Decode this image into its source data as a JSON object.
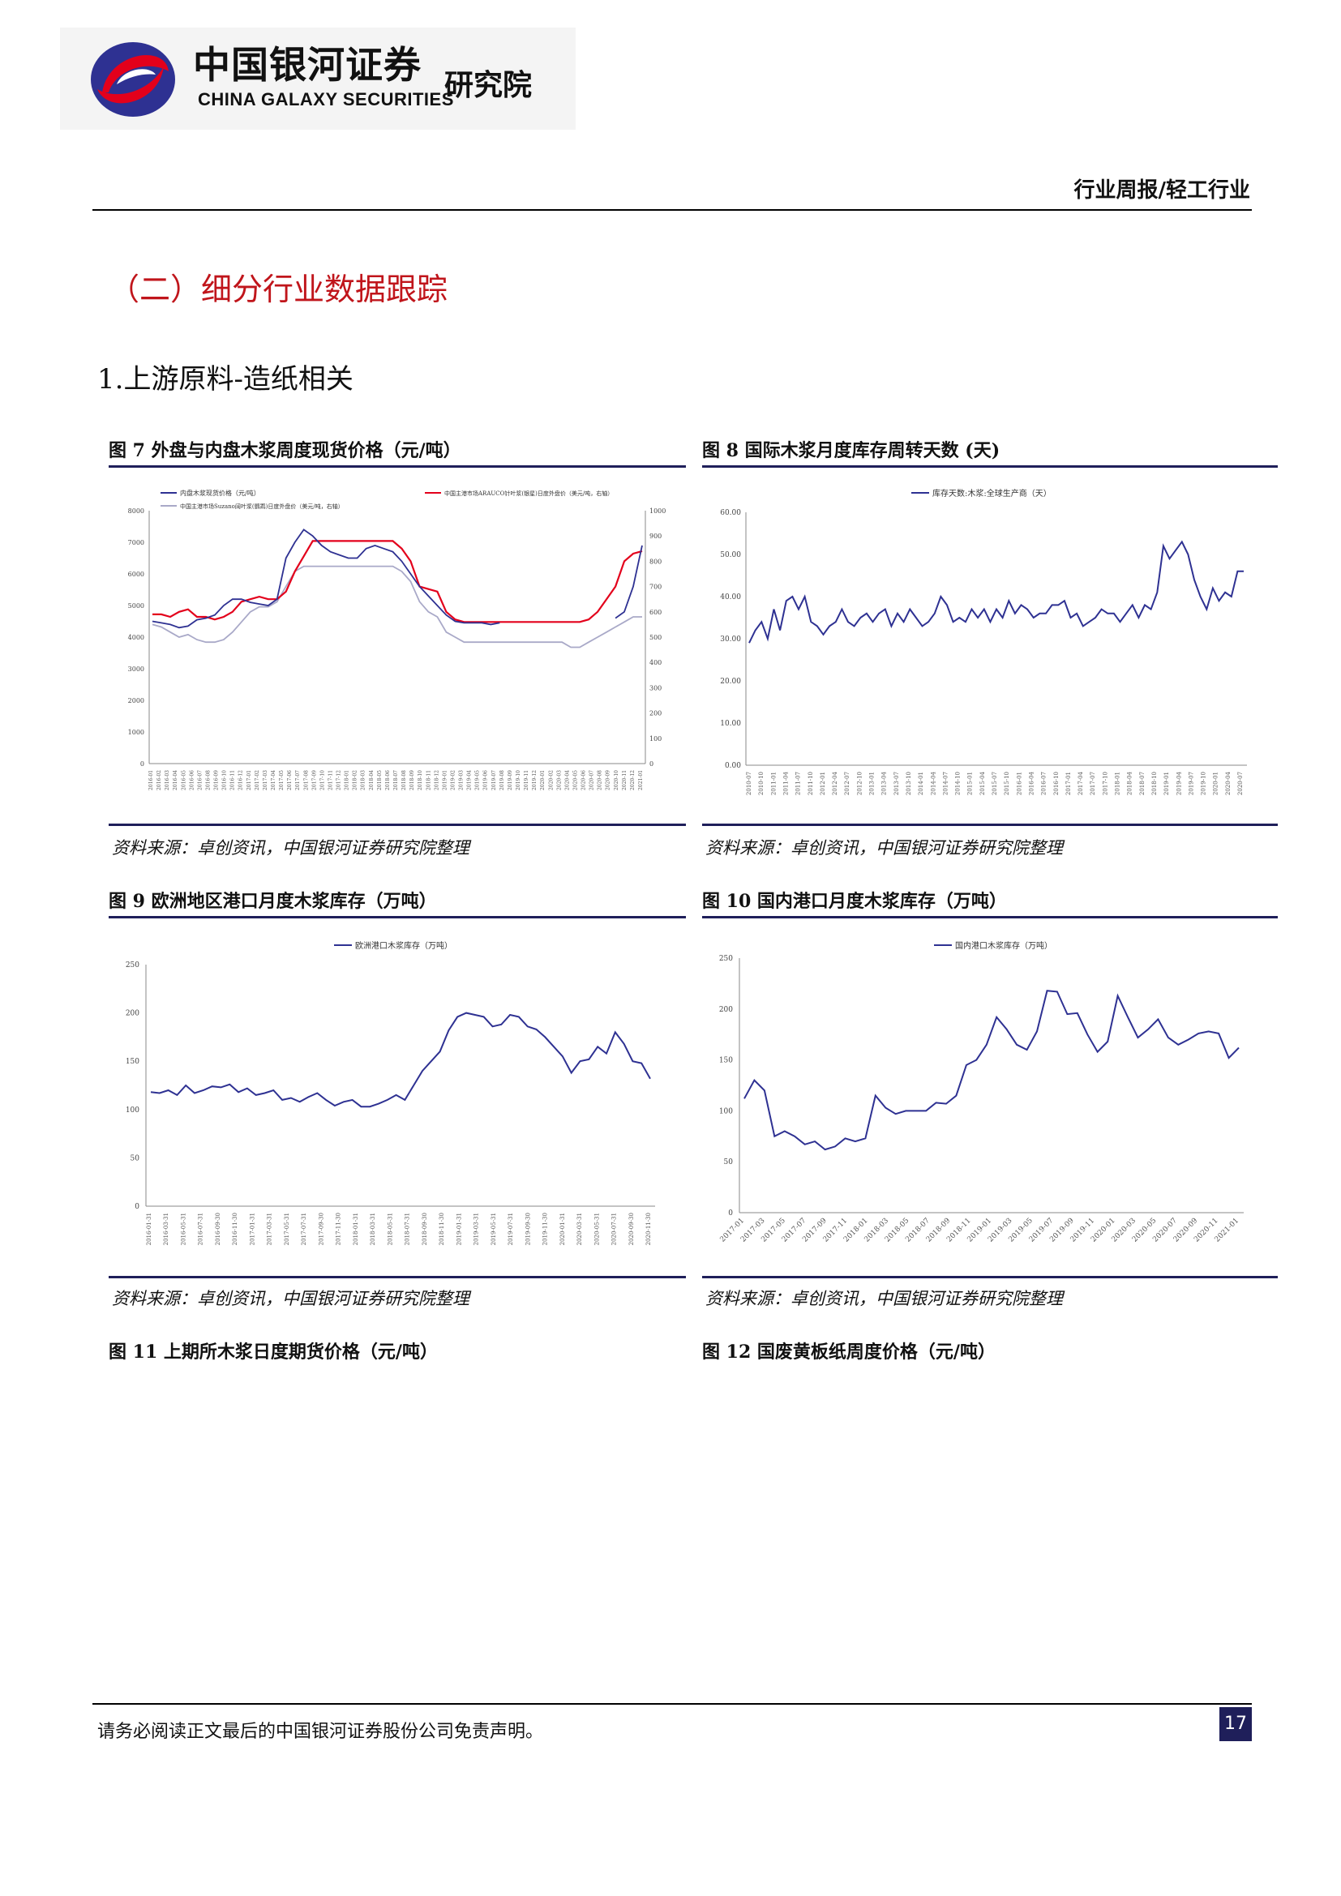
{
  "header": {
    "logo_cn": "中国银河证券",
    "logo_en": "CHINA GALAXY SECURITIES",
    "logo_inst": "研究院",
    "report_type": "行业周报/轻工行业"
  },
  "section_title": "（二）细分行业数据跟踪",
  "subsection_title": "1.上游原料-造纸相关",
  "figures": {
    "fig7": {
      "title": "图 7 外盘与内盘木浆周度现货价格（元/吨）",
      "source": "资料来源：卓创资讯，中国银河证券研究院整理"
    },
    "fig8": {
      "title": "图 8 国际木浆月度库存周转天数 (天)",
      "source": "资料来源：卓创资讯，中国银河证券研究院整理"
    },
    "fig9": {
      "title": "图 9 欧洲地区港口月度木浆库存（万吨）",
      "source": "资料来源：卓创资讯，中国银河证券研究院整理"
    },
    "fig10": {
      "title": "图 10 国内港口月度木浆库存（万吨）",
      "source": "资料来源：卓创资讯，中国银河证券研究院整理"
    },
    "fig11": {
      "title": "图 11 上期所木浆日度期货价格（元/吨）"
    },
    "fig12": {
      "title": "图 12 国废黄板纸周度价格（元/吨）"
    }
  },
  "footer": {
    "disclaimer": "请务必阅读正文最后的中国银河证券股份公司免责声明。",
    "page": "17"
  },
  "chart_data": [
    {
      "id": "fig7",
      "type": "line",
      "legend": [
        "内盘木浆现货价格（元/吨）",
        "中国主港市场ARAUCO针叶浆(银星)日度外盘价（美元/吨，右轴）",
        "中国主港市场Suzano阔叶浆(鹦鹉)日度外盘价（美元/吨，右轴）"
      ],
      "colors": [
        "#2e3192",
        "#e3001b",
        "#a9a9c8"
      ],
      "ylim_left": [
        0,
        8000
      ],
      "yticks_left": [
        0,
        1000,
        2000,
        3000,
        4000,
        5000,
        6000,
        7000,
        8000
      ],
      "ylim_right": [
        0,
        1000
      ],
      "yticks_right": [
        0,
        100,
        200,
        300,
        400,
        500,
        600,
        700,
        800,
        900,
        1000
      ],
      "x_start": "2016-01",
      "x_end": "2021-01",
      "series": [
        {
          "name": "内盘木浆现货价格（元/吨）",
          "axis": "left",
          "values": [
            4500,
            4450,
            4400,
            4300,
            4350,
            4550,
            4600,
            4700,
            5000,
            5200,
            5200,
            5100,
            5050,
            5000,
            5200,
            6500,
            7000,
            7400,
            7200,
            6900,
            6700,
            6600,
            6500,
            6500,
            6800,
            6900,
            6800,
            6700,
            6400,
            6000,
            5600,
            5300,
            5000,
            4700,
            4500,
            4450,
            4450,
            4450,
            4400,
            4450,
            null,
            null,
            null,
            null,
            null,
            null,
            null,
            null,
            null,
            null,
            null,
            null,
            4600,
            4800,
            5600,
            6900
          ]
        },
        {
          "name": "中国主港市场ARAUCO针叶浆(银星)日度外盘价（美元/吨，右轴）",
          "axis": "right",
          "values": [
            590,
            590,
            580,
            600,
            610,
            580,
            580,
            570,
            580,
            600,
            640,
            650,
            660,
            650,
            650,
            680,
            760,
            820,
            880,
            880,
            880,
            880,
            880,
            880,
            880,
            880,
            880,
            880,
            850,
            800,
            700,
            690,
            680,
            600,
            570,
            560,
            560,
            560,
            560,
            560,
            560,
            560,
            560,
            560,
            560,
            560,
            560,
            560,
            560,
            570,
            600,
            650,
            700,
            800,
            830,
            840
          ]
        },
        {
          "name": "中国主港市场Suzano阔叶浆(鹦鹉)日度外盘价（美元/吨，右轴）",
          "axis": "right",
          "values": [
            550,
            540,
            520,
            500,
            510,
            490,
            480,
            480,
            490,
            520,
            560,
            600,
            620,
            620,
            640,
            700,
            760,
            780,
            780,
            780,
            780,
            780,
            780,
            780,
            780,
            780,
            780,
            780,
            760,
            720,
            640,
            600,
            580,
            520,
            500,
            480,
            480,
            480,
            480,
            480,
            480,
            480,
            480,
            480,
            480,
            480,
            480,
            460,
            460,
            480,
            500,
            520,
            540,
            560,
            580,
            580
          ]
        }
      ]
    },
    {
      "id": "fig8",
      "type": "line",
      "legend": [
        "库存天数:木浆:全球生产商（天）"
      ],
      "color": "#2e3192",
      "ylim": [
        0,
        60
      ],
      "yticks": [
        "0.00",
        "10.00",
        "20.00",
        "30.00",
        "40.00",
        "50.00",
        "60.00"
      ],
      "x_labels": [
        "2010-07",
        "2010-10",
        "2011-01",
        "2011-04",
        "2011-07",
        "2011-10",
        "2012-01",
        "2012-04",
        "2012-07",
        "2012-10",
        "2013-01",
        "2013-04",
        "2013-07",
        "2013-10",
        "2014-01",
        "2014-04",
        "2014-07",
        "2014-10",
        "2015-01",
        "2015-04",
        "2015-07",
        "2015-10",
        "2016-01",
        "2016-04",
        "2016-07",
        "2016-10",
        "2017-01",
        "2017-04",
        "2017-07",
        "2017-10",
        "2018-01",
        "2018-04",
        "2018-07",
        "2018-10",
        "2019-01",
        "2019-04",
        "2019-07",
        "2019-10",
        "2020-01",
        "2020-04",
        "2020-07"
      ],
      "values": [
        29,
        32,
        34,
        30,
        37,
        32,
        39,
        40,
        37,
        40,
        34,
        33,
        31,
        33,
        34,
        37,
        34,
        33,
        35,
        36,
        34,
        36,
        37,
        33,
        36,
        34,
        37,
        35,
        33,
        34,
        36,
        40,
        38,
        34,
        35,
        34,
        37,
        35,
        37,
        34,
        37,
        35,
        39,
        36,
        38,
        37,
        35,
        36,
        36,
        38,
        38,
        39,
        35,
        36,
        33,
        34,
        35,
        37,
        36,
        36,
        34,
        36,
        38,
        35,
        38,
        37,
        41,
        52,
        49,
        51,
        53,
        50,
        44,
        40,
        37,
        42,
        39,
        41,
        40,
        46,
        46
      ]
    },
    {
      "id": "fig9",
      "type": "line",
      "legend": [
        "欧洲港口木浆库存（万吨）"
      ],
      "color": "#2e3192",
      "ylim": [
        0,
        250
      ],
      "yticks": [
        0,
        50,
        100,
        150,
        200,
        250
      ],
      "x_labels": [
        "2016-01-31",
        "2016-03-31",
        "2016-05-31",
        "2016-07-31",
        "2016-09-30",
        "2016-11-30",
        "2017-01-31",
        "2017-03-31",
        "2017-05-31",
        "2017-07-31",
        "2017-09-30",
        "2017-11-30",
        "2018-01-31",
        "2018-03-31",
        "2018-05-31",
        "2018-07-31",
        "2018-09-30",
        "2018-11-30",
        "2019-01-31",
        "2019-03-31",
        "2019-05-31",
        "2019-07-31",
        "2019-09-30",
        "2019-11-30",
        "2020-01-31",
        "2020-03-31",
        "2020-05-31",
        "2020-07-31",
        "2020-09-30",
        "2020-11-30"
      ],
      "values": [
        118,
        117,
        120,
        115,
        125,
        117,
        120,
        124,
        123,
        126,
        118,
        122,
        115,
        117,
        120,
        110,
        112,
        108,
        113,
        117,
        110,
        104,
        108,
        110,
        103,
        103,
        106,
        110,
        115,
        110,
        125,
        140,
        150,
        160,
        182,
        196,
        200,
        198,
        196,
        186,
        188,
        198,
        196,
        186,
        183,
        175,
        165,
        155,
        138,
        150,
        152,
        165,
        158,
        180,
        168,
        150,
        148,
        132
      ]
    },
    {
      "id": "fig10",
      "type": "line",
      "legend": [
        "国内港口木浆库存（万吨）"
      ],
      "color": "#2e3192",
      "ylim": [
        0,
        250
      ],
      "yticks": [
        0,
        50,
        100,
        150,
        200,
        250
      ],
      "x_labels": [
        "2017-01",
        "2017-03",
        "2017-05",
        "2017-07",
        "2017-09",
        "2017-11",
        "2018-01",
        "2018-03",
        "2018-05",
        "2018-07",
        "2018-09",
        "2018-11",
        "2019-01",
        "2019-03",
        "2019-05",
        "2019-07",
        "2019-09",
        "2019-11",
        "2020-01",
        "2020-03",
        "2020-05",
        "2020-07",
        "2020-09",
        "2020-11",
        "2021-01"
      ],
      "values": [
        112,
        130,
        120,
        75,
        80,
        75,
        67,
        70,
        62,
        65,
        73,
        70,
        73,
        115,
        103,
        97,
        100,
        100,
        100,
        108,
        107,
        115,
        145,
        150,
        165,
        192,
        180,
        165,
        160,
        178,
        218,
        217,
        195,
        196,
        175,
        158,
        168,
        213,
        192,
        172,
        180,
        190,
        172,
        165,
        170,
        176,
        178,
        176,
        152,
        162
      ]
    }
  ]
}
